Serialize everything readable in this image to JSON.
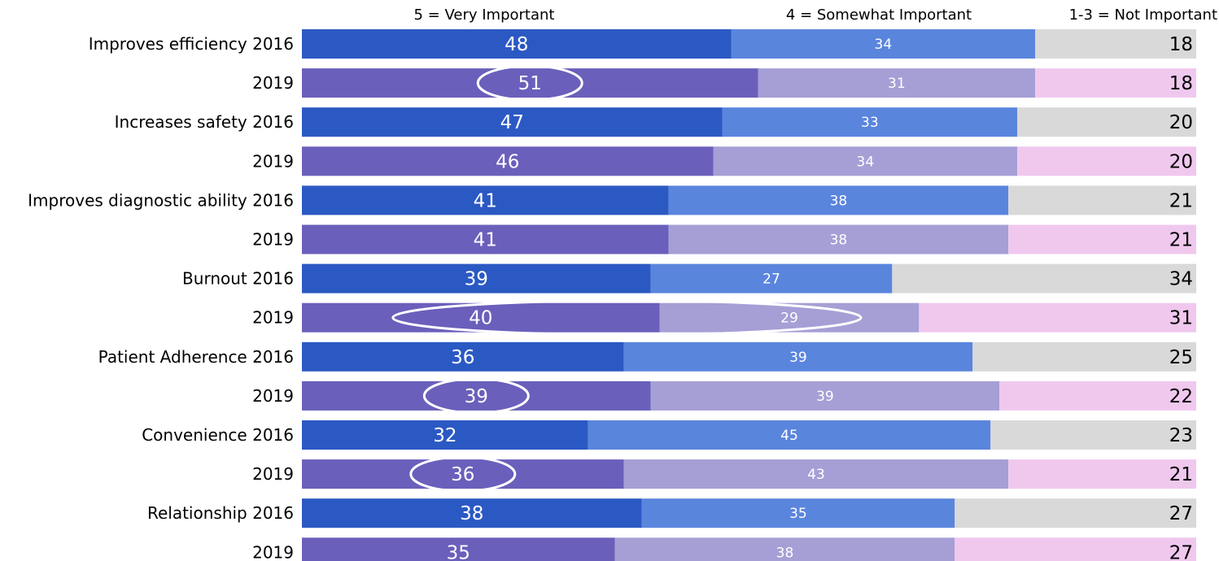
{
  "chart_data": {
    "type": "bar",
    "orientation": "horizontal",
    "stacked": true,
    "legend": [
      "5 = Very Important",
      "4 = Somewhat Important",
      "1-3 = Not Important"
    ],
    "rows": [
      {
        "category": "Improves efficiency",
        "year": "2016",
        "values": [
          48,
          34,
          18
        ]
      },
      {
        "category": "",
        "year": "2019",
        "values": [
          51,
          31,
          18
        ],
        "highlight": "very"
      },
      {
        "category": "Increases safety",
        "year": "2016",
        "values": [
          47,
          33,
          20
        ]
      },
      {
        "category": "",
        "year": "2019",
        "values": [
          46,
          34,
          20
        ]
      },
      {
        "category": "Improves diagnostic ability",
        "year": "2016",
        "values": [
          41,
          38,
          21
        ]
      },
      {
        "category": "",
        "year": "2019",
        "values": [
          41,
          38,
          21
        ]
      },
      {
        "category": "Burnout",
        "year": "2016",
        "values": [
          39,
          27,
          34
        ]
      },
      {
        "category": "",
        "year": "2019",
        "values": [
          40,
          29,
          31
        ],
        "highlight": "very-some"
      },
      {
        "category": "Patient Adherence",
        "year": "2016",
        "values": [
          36,
          39,
          25
        ]
      },
      {
        "category": "",
        "year": "2019",
        "values": [
          39,
          39,
          22
        ],
        "highlight": "very"
      },
      {
        "category": "Convenience",
        "year": "2016",
        "values": [
          32,
          45,
          23
        ]
      },
      {
        "category": "",
        "year": "2019",
        "values": [
          36,
          43,
          21
        ],
        "highlight": "very"
      },
      {
        "category": "Relationship",
        "year": "2016",
        "values": [
          38,
          35,
          27
        ]
      },
      {
        "category": "",
        "year": "2019",
        "values": [
          35,
          38,
          27
        ]
      }
    ],
    "colors": {
      "2016": [
        "#2b59c3",
        "#5a85dd",
        "#d9d9d9"
      ],
      "2019": [
        "#6a5fbb",
        "#a59fd6",
        "#f0c8ee"
      ]
    },
    "xlim": [
      0,
      100
    ],
    "grid": false
  }
}
